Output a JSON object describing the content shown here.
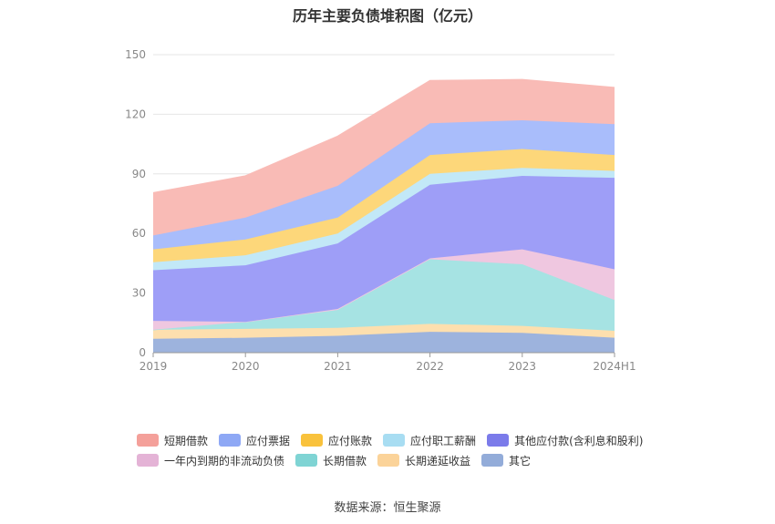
{
  "title": "历年主要负债堆积图（亿元）",
  "source": "数据来源：恒生聚源",
  "chart_data": {
    "type": "area",
    "stacked": true,
    "categories": [
      "2019",
      "2020",
      "2021",
      "2022",
      "2023",
      "2024H1"
    ],
    "ylim": [
      0,
      150
    ],
    "yticks": [
      0,
      30,
      60,
      90,
      120,
      150
    ],
    "grid": true,
    "legend_position": "bottom",
    "series": [
      {
        "name": "其它",
        "color": "#9db3dd",
        "values": [
          7.0,
          7.5,
          8.5,
          10.5,
          10.0,
          7.5
        ]
      },
      {
        "name": "长期递延收益",
        "color": "#fddfae",
        "values": [
          4.5,
          4.5,
          4.0,
          4.0,
          3.5,
          3.5
        ]
      },
      {
        "name": "长期借款",
        "color": "#a6e3e3",
        "values": [
          0.0,
          3.5,
          9.0,
          32.5,
          31.0,
          15.5
        ]
      },
      {
        "name": "一年内到期的非流动负债",
        "color": "#efc7e0",
        "values": [
          4.5,
          0.0,
          0.5,
          0.5,
          7.5,
          15.5
        ]
      },
      {
        "name": "其他应付款(含利息和股利)",
        "color": "#9e9ef7",
        "values": [
          25.5,
          28.5,
          33.0,
          37.0,
          37.0,
          46.0
        ]
      },
      {
        "name": "应付职工薪酬",
        "color": "#c2e8f7",
        "values": [
          4.0,
          5.0,
          5.0,
          5.5,
          4.0,
          3.5
        ]
      },
      {
        "name": "应付账款",
        "color": "#fdd77a",
        "values": [
          6.5,
          8.0,
          8.0,
          9.5,
          9.5,
          8.0
        ]
      },
      {
        "name": "应付票据",
        "color": "#a9bdfb",
        "values": [
          7.0,
          11.0,
          16.0,
          16.0,
          14.5,
          15.5
        ]
      },
      {
        "name": "短期借款",
        "color": "#f9bbb6",
        "values": [
          21.5,
          21.0,
          25.0,
          21.5,
          20.5,
          18.5
        ]
      }
    ]
  },
  "legend": {
    "row1": [
      {
        "name": "短期借款",
        "color": "#f4a09a"
      },
      {
        "name": "应付票据",
        "color": "#8ea8f5"
      },
      {
        "name": "应付账款",
        "color": "#f9c23c"
      },
      {
        "name": "应付职工薪酬",
        "color": "#a8ddf2"
      },
      {
        "name": "其他应付款(含利息和股利)",
        "color": "#7b7bea"
      }
    ],
    "row2": [
      {
        "name": "一年内到期的非流动负债",
        "color": "#e4b3d6"
      },
      {
        "name": "长期借款",
        "color": "#7fd4d4"
      },
      {
        "name": "长期递延收益",
        "color": "#fbd399"
      },
      {
        "name": "其它",
        "color": "#93acd9"
      }
    ]
  }
}
